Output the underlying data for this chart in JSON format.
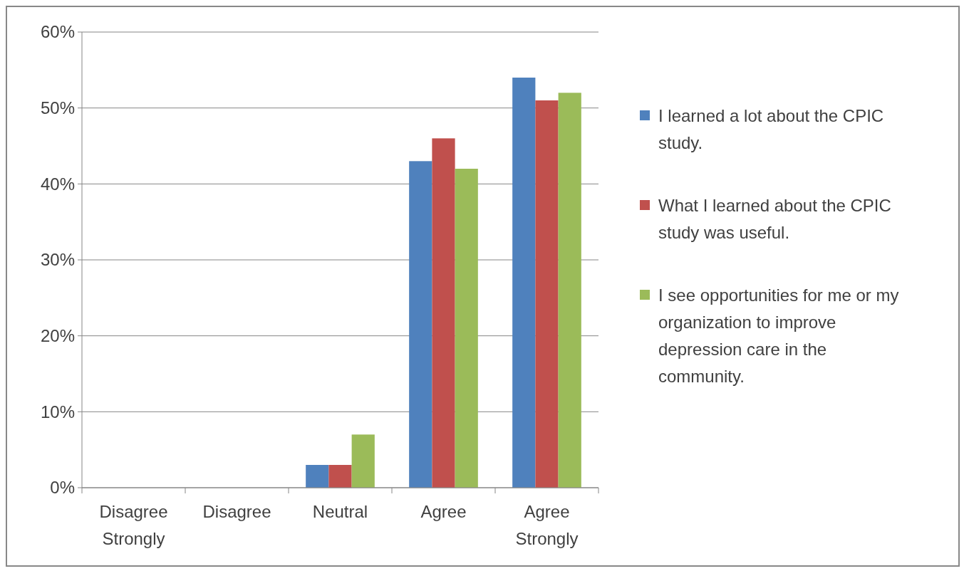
{
  "chart_data": {
    "type": "bar",
    "categories": [
      "Disagree Strongly",
      "Disagree",
      "Neutral",
      "Agree",
      "Agree Strongly"
    ],
    "series": [
      {
        "name": "I learned a lot about the CPIC study.",
        "color": "#4f81bd",
        "values": [
          0,
          0,
          3,
          43,
          54
        ]
      },
      {
        "name": "What I learned about the CPIC study was useful.",
        "color": "#c0504d",
        "values": [
          0,
          0,
          3,
          46,
          51
        ]
      },
      {
        "name": "I see opportunities for me or my organization to improve depression care in the community.",
        "color": "#9bbb59",
        "values": [
          0,
          0,
          7,
          42,
          52
        ]
      }
    ],
    "ylim": [
      0,
      60
    ],
    "yticks": [
      {
        "value": 0,
        "label": "0%"
      },
      {
        "value": 10,
        "label": "10%"
      },
      {
        "value": 20,
        "label": "20%"
      },
      {
        "value": 30,
        "label": "30%"
      },
      {
        "value": 40,
        "label": "40%"
      },
      {
        "value": 50,
        "label": "50%"
      },
      {
        "value": 60,
        "label": "60%"
      }
    ],
    "grid": "y",
    "legend": "right"
  }
}
